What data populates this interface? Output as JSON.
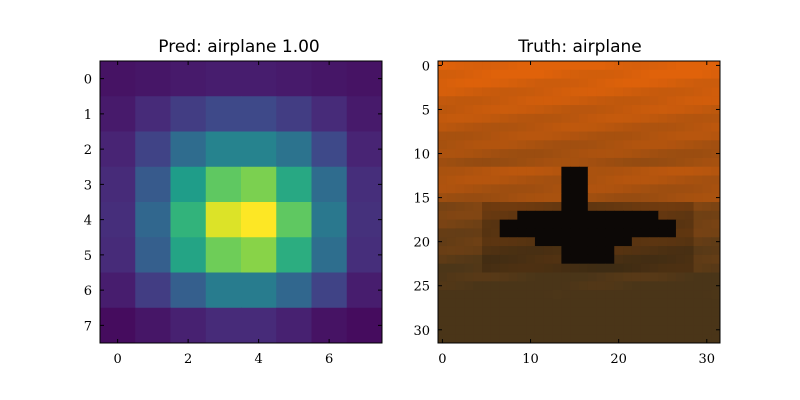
{
  "chart_data": [
    {
      "type": "heatmap",
      "title": "Pred: airplane 1.00",
      "colormap": "viridis",
      "xlim": [
        -0.5,
        7.5
      ],
      "ylim": [
        7.5,
        -0.5
      ],
      "xticks": [
        0,
        2,
        4,
        6
      ],
      "yticks": [
        0,
        1,
        2,
        3,
        4,
        5,
        6,
        7
      ],
      "matrix": [
        [
          0.05,
          0.06,
          0.07,
          0.08,
          0.08,
          0.07,
          0.06,
          0.05
        ],
        [
          0.07,
          0.12,
          0.18,
          0.22,
          0.22,
          0.18,
          0.12,
          0.07
        ],
        [
          0.1,
          0.2,
          0.35,
          0.45,
          0.45,
          0.38,
          0.22,
          0.1
        ],
        [
          0.12,
          0.28,
          0.55,
          0.75,
          0.8,
          0.6,
          0.35,
          0.13
        ],
        [
          0.13,
          0.33,
          0.65,
          0.95,
          1.0,
          0.75,
          0.4,
          0.14
        ],
        [
          0.12,
          0.3,
          0.58,
          0.78,
          0.82,
          0.62,
          0.36,
          0.13
        ],
        [
          0.08,
          0.18,
          0.3,
          0.42,
          0.42,
          0.33,
          0.2,
          0.08
        ],
        [
          0.03,
          0.06,
          0.09,
          0.12,
          0.12,
          0.09,
          0.05,
          0.03
        ]
      ]
    },
    {
      "type": "image",
      "title": "Truth: airplane",
      "xlim": [
        -0.5,
        31.5
      ],
      "ylim": [
        31.5,
        -0.5
      ],
      "xticks": [
        0,
        10,
        20,
        30
      ],
      "yticks": [
        0,
        5,
        10,
        15,
        20,
        25,
        30
      ],
      "sky_color_top": "#e0620a",
      "ground_color": "#4a3518",
      "aircraft_color": "#0c0806"
    }
  ]
}
